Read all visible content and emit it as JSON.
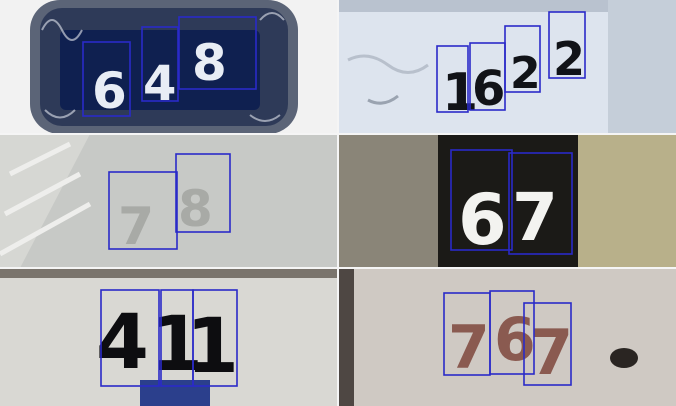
{
  "tiles": [
    {
      "number": "648",
      "digits": [
        "6",
        "4",
        "8"
      ],
      "digit_color": "#e8edf5",
      "plate_color": "#0f2050"
    },
    {
      "number": "1622",
      "digits": [
        "1",
        "6",
        "2",
        "2"
      ],
      "digit_color": "#111318",
      "plate_color": "#e9eef5"
    },
    {
      "number": "78",
      "digits": [
        "7",
        "8"
      ],
      "digit_color": "#a8aaa6",
      "plate_color": "#c7c9c6"
    },
    {
      "number": "67",
      "digits": [
        "6",
        "7"
      ],
      "digit_color": "#f3f3f0",
      "plate_color": "#1b1a17"
    },
    {
      "number": "411",
      "digits": [
        "4",
        "1",
        "1"
      ],
      "digit_color": "#0d0d10",
      "plate_color": "#d9d8d3"
    },
    {
      "number": "767",
      "digits": [
        "7",
        "6",
        "7"
      ],
      "digit_color": "#8a5a50",
      "plate_color": "#cfc9c3"
    }
  ],
  "box_color": "#2a2ac8"
}
